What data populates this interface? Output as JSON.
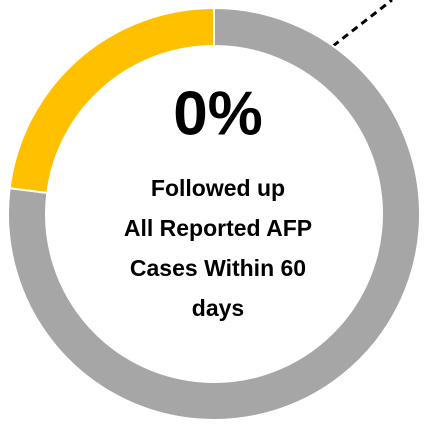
{
  "chart_data": {
    "type": "donut",
    "center_label": "0%",
    "caption_lines": [
      "Followed up",
      "All Reported AFP",
      "Cases Within 60",
      "days"
    ],
    "series": [
      {
        "name": null,
        "color": "#a6a6a6",
        "value": 77
      },
      {
        "name": null,
        "color": "#ffc000",
        "value": 23
      }
    ]
  }
}
